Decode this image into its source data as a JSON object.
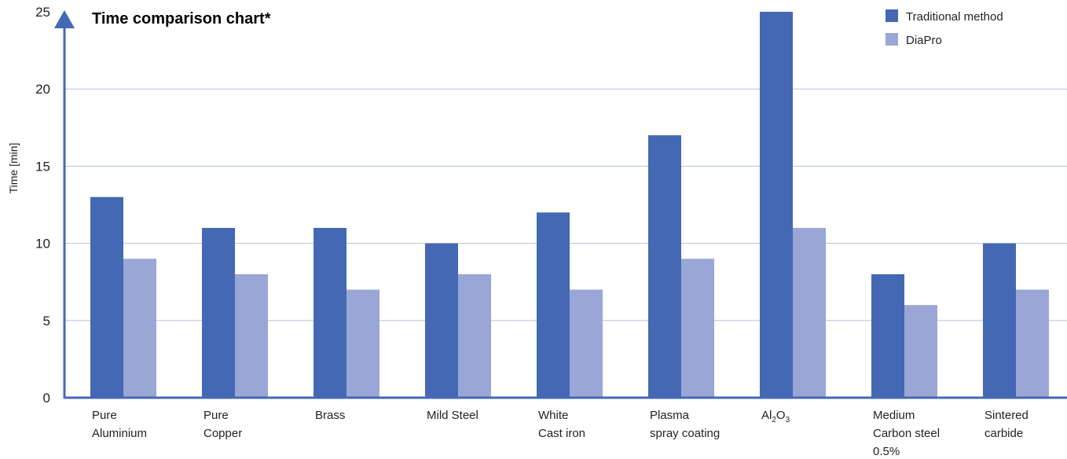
{
  "chart_data": {
    "type": "bar",
    "title": "Time comparison chart*",
    "ylabel": "Time [min]",
    "xlabel": "",
    "ylim": [
      0,
      25
    ],
    "yticks": [
      "0",
      "5",
      "10",
      "15",
      "20",
      "25"
    ],
    "grid": true,
    "legend": "top-right",
    "categories": [
      [
        "Pure",
        "Aluminium"
      ],
      [
        "Pure",
        "Copper"
      ],
      [
        "Brass"
      ],
      [
        "Mild Steel"
      ],
      [
        "White",
        "Cast iron"
      ],
      [
        "Plasma",
        "spray coating"
      ],
      [
        "Al2O3"
      ],
      [
        "Medium",
        "Carbon steel",
        "0.5%"
      ],
      [
        "Sintered",
        "carbide"
      ]
    ],
    "series": [
      {
        "name": "Traditional method",
        "color": "#4468b4",
        "values": [
          13,
          11,
          11,
          10,
          12,
          17,
          25,
          8,
          10
        ]
      },
      {
        "name": "DiaPro",
        "color": "#9aa6d6",
        "values": [
          9,
          8,
          7,
          8,
          7,
          9,
          11,
          6,
          7
        ]
      }
    ],
    "axis_color": "#4468b4",
    "grid_color": "#b7c2d9"
  }
}
